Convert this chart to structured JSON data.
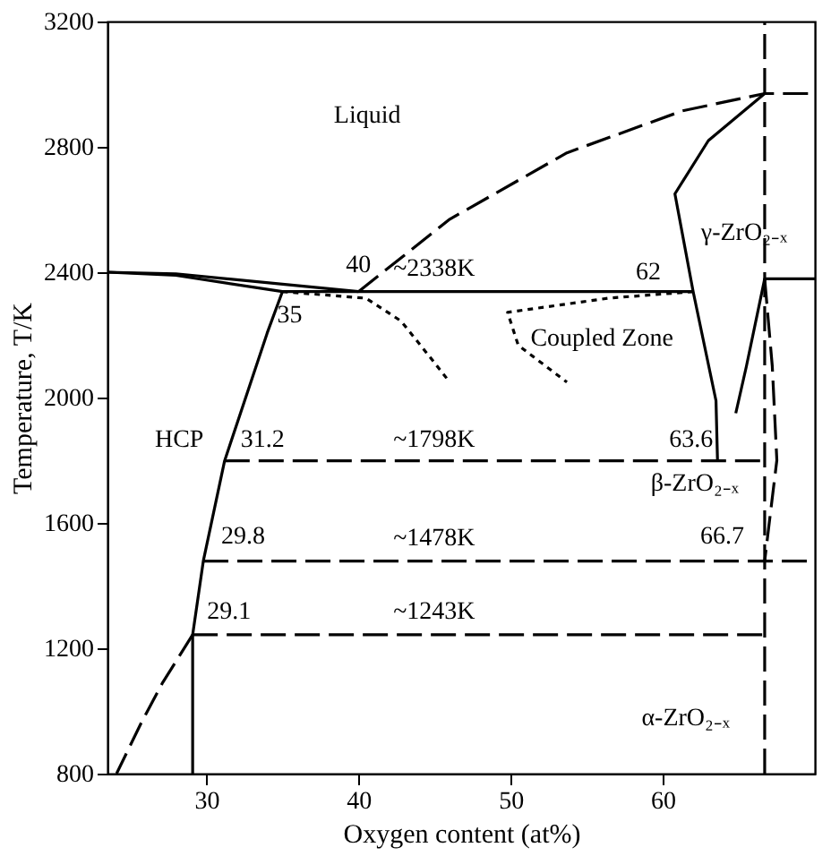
{
  "chart_data": {
    "type": "line",
    "xlabel": "Oxygen content (at%)",
    "ylabel": "Temperature, T/K",
    "xlim": [
      23.5,
      70
    ],
    "xticks": [
      30,
      40,
      50,
      60
    ],
    "ylim": [
      800,
      3200
    ],
    "yticks": [
      800,
      1200,
      1600,
      2000,
      2400,
      2800,
      3200
    ],
    "grid": false,
    "marker": "none",
    "series": [
      {
        "color": "#000000",
        "line_style": "solid",
        "x": [
          23.5,
          28,
          40
        ],
        "values": [
          2400,
          2395,
          2338
        ]
      },
      {
        "color": "#000000",
        "line_style": "solid",
        "x": [
          23.5,
          28,
          35,
          62
        ],
        "values": [
          2400,
          2390,
          2338,
          2338
        ]
      },
      {
        "color": "#000000",
        "line_style": "solid",
        "x": [
          35,
          34,
          31.2,
          29.8,
          29.1,
          29.1
        ],
        "values": [
          2338,
          2206,
          1798,
          1478,
          1243,
          800
        ]
      },
      {
        "color": "#000000",
        "line_style": "dashed",
        "x": [
          29.1,
          27.1,
          25.7,
          24.1
        ],
        "values": [
          1243,
          1088,
          960,
          800
        ]
      },
      {
        "color": "#000000",
        "line_style": "dashed",
        "x": [
          40,
          46,
          53.7,
          61.3,
          66.7,
          70
        ],
        "values": [
          2338,
          2569,
          2781,
          2915,
          2970,
          2970
        ]
      },
      {
        "color": "#000000",
        "line_style": "solid",
        "x": [
          66.7,
          63,
          60.8,
          62,
          63.5,
          63.6
        ],
        "values": [
          2970,
          2820,
          2650,
          2338,
          1990,
          1798
        ]
      },
      {
        "color": "#000000",
        "line_style": "dashed",
        "x": [
          31.2,
          66.7
        ],
        "values": [
          1798,
          1798
        ]
      },
      {
        "color": "#000000",
        "line_style": "dashed",
        "x": [
          29.8,
          70
        ],
        "values": [
          1478,
          1478
        ]
      },
      {
        "color": "#000000",
        "line_style": "dashed",
        "x": [
          29.1,
          66.7
        ],
        "values": [
          1243,
          1243
        ]
      },
      {
        "color": "#000000",
        "line_style": "dashed",
        "x": [
          66.7,
          66.7
        ],
        "values": [
          800,
          3200
        ]
      },
      {
        "color": "#000000",
        "line_style": "solid",
        "x": [
          64.8,
          65.5,
          66.7,
          70
        ],
        "values": [
          1950,
          2100,
          2379,
          2379
        ]
      },
      {
        "color": "#000000",
        "line_style": "dashed",
        "x": [
          66.7,
          67.2,
          67.5,
          67,
          66.7
        ],
        "values": [
          2379,
          2100,
          1800,
          1600,
          1478
        ]
      },
      {
        "color": "#000000",
        "line_style": "dotted",
        "x": [
          35,
          40.5,
          42.8,
          45,
          46
        ],
        "values": [
          2338,
          2317,
          2244,
          2111,
          2049
        ]
      },
      {
        "color": "#000000",
        "line_style": "dotted",
        "x": [
          62,
          56.4,
          49.8,
          50.5,
          53.7
        ],
        "values": [
          2338,
          2317,
          2272,
          2167,
          2049
        ]
      }
    ],
    "annotations": [
      "Liquid",
      {
        "text": "40",
        "x": 40,
        "y": 2338
      },
      "~2338K",
      {
        "text": "62",
        "x": 62,
        "y": 2338
      },
      {
        "text": "35",
        "x": 35,
        "y": 2338
      },
      "Coupled Zone",
      "γ-ZrO₂₋ₓ",
      "HCP",
      {
        "text": "31.2",
        "x": 31.2,
        "y": 1798
      },
      "~1798K",
      {
        "text": "63.6",
        "x": 63.6,
        "y": 1798
      },
      "β-ZrO₂₋ₓ",
      {
        "text": "29.8",
        "x": 29.8,
        "y": 1478
      },
      "~1478K",
      {
        "text": "66.7",
        "x": 66.7,
        "y": 1478
      },
      {
        "text": "29.1",
        "x": 29.1,
        "y": 1243
      },
      "~1243K",
      "α-ZrO₂₋ₓ"
    ]
  }
}
